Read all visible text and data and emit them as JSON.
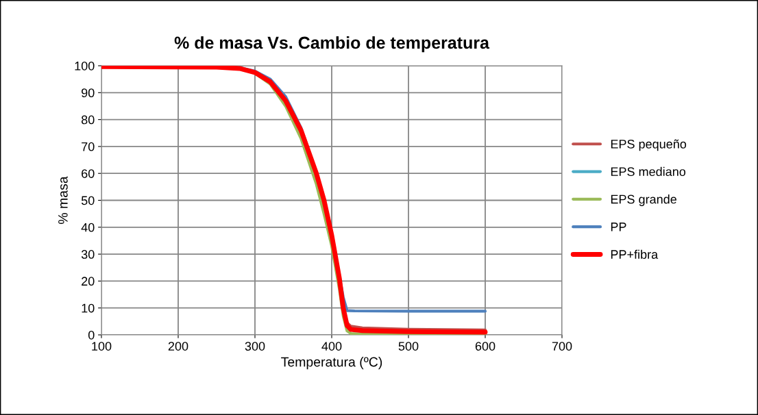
{
  "chart_data": {
    "type": "line",
    "title": "% de masa Vs. Cambio de temperatura",
    "xlabel": "Temperatura (ºC)",
    "ylabel": "% masa",
    "xlim": [
      100,
      700
    ],
    "xticks": [
      100,
      200,
      300,
      400,
      500,
      600,
      700
    ],
    "ylim": [
      0,
      100
    ],
    "yticks": [
      0,
      10,
      20,
      30,
      40,
      50,
      60,
      70,
      80,
      90,
      100
    ],
    "grid": true,
    "legend": "right",
    "marker": "none",
    "line_style": "solid",
    "series": [
      {
        "name": "EPS pequeño",
        "color": "#c0504d",
        "x": [
          415,
          420,
          425,
          440,
          500,
          600
        ],
        "values": [
          10,
          4.5,
          3.2,
          2.6,
          2.1,
          1.8
        ]
      },
      {
        "name": "EPS mediano",
        "color": "#4bacc6"
      },
      {
        "name": "EPS grande",
        "color": "#9bbb59",
        "x": [
          280,
          300,
          320,
          340,
          360,
          380,
          390,
          400,
          410,
          415,
          420,
          425,
          440,
          500,
          600
        ],
        "values": [
          99,
          97.2,
          93.2,
          85,
          73,
          56,
          45,
          33,
          17,
          7,
          1.5,
          0.5,
          0.3,
          0.2,
          0.1
        ]
      },
      {
        "name": "PP",
        "color": "#4f81bd",
        "x": [
          280,
          300,
          320,
          340,
          360,
          380,
          390,
          400,
          410,
          415,
          420,
          430,
          500,
          600
        ],
        "values": [
          99.3,
          98,
          95,
          88.5,
          77,
          60,
          50,
          37,
          22,
          14,
          9,
          8.9,
          8.8,
          8.8
        ]
      },
      {
        "name": "PP+fibra",
        "color": "#ff0000",
        "x": [
          100,
          250,
          280,
          300,
          320,
          340,
          360,
          380,
          390,
          400,
          410,
          415,
          420,
          425,
          440,
          500,
          600
        ],
        "values": [
          99.7,
          99.5,
          99,
          97.5,
          94,
          87,
          76,
          60,
          50,
          37,
          21,
          10,
          3.5,
          2,
          1.6,
          1.2,
          1
        ]
      }
    ]
  }
}
